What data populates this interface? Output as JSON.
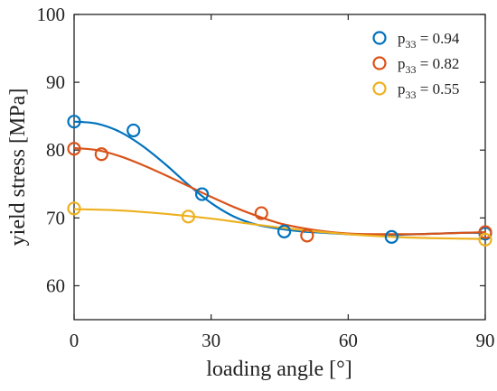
{
  "chart_data": {
    "type": "scatter",
    "xlabel": "loading angle [°]",
    "ylabel": "yield stress [MPa]",
    "xlim": [
      0,
      90
    ],
    "ylim": [
      55,
      100
    ],
    "xticks": [
      0,
      30,
      60,
      90
    ],
    "yticks": [
      60,
      70,
      80,
      90,
      100
    ],
    "grid": false,
    "legend_position": "top-right",
    "series": [
      {
        "name": "p33 = 0.94",
        "legend": {
          "base": "p",
          "sub": "33",
          "rest": " = 0.94"
        },
        "color": "#0072BD",
        "points": [
          [
            0,
            84.2
          ],
          [
            13,
            82.9
          ],
          [
            28,
            73.5
          ],
          [
            46,
            68.0
          ],
          [
            69.5,
            67.2
          ],
          [
            90,
            67.7
          ]
        ],
        "fit": [
          [
            0,
            84.2
          ],
          [
            5,
            83.9
          ],
          [
            10,
            82.7
          ],
          [
            15,
            80.6
          ],
          [
            20,
            77.9
          ],
          [
            25,
            74.9
          ],
          [
            30,
            72.2
          ],
          [
            35,
            70.2
          ],
          [
            40,
            69.0
          ],
          [
            45,
            68.4
          ],
          [
            50,
            68.0
          ],
          [
            55,
            67.8
          ],
          [
            60,
            67.6
          ],
          [
            65,
            67.5
          ],
          [
            70,
            67.5
          ],
          [
            75,
            67.6
          ],
          [
            80,
            67.7
          ],
          [
            85,
            67.8
          ],
          [
            90,
            67.8
          ]
        ]
      },
      {
        "name": "p33 = 0.82",
        "legend": {
          "base": "p",
          "sub": "33",
          "rest": " = 0.82"
        },
        "color": "#D95319",
        "points": [
          [
            0,
            80.2
          ],
          [
            6,
            79.4
          ],
          [
            41,
            70.7
          ],
          [
            51,
            67.4
          ],
          [
            90,
            67.9
          ]
        ],
        "fit": [
          [
            0,
            80.3
          ],
          [
            5,
            80.0
          ],
          [
            10,
            79.1
          ],
          [
            15,
            77.8
          ],
          [
            20,
            76.3
          ],
          [
            25,
            74.7
          ],
          [
            30,
            73.1
          ],
          [
            35,
            71.6
          ],
          [
            40,
            70.3
          ],
          [
            45,
            69.2
          ],
          [
            50,
            68.5
          ],
          [
            55,
            68.0
          ],
          [
            60,
            67.7
          ],
          [
            65,
            67.6
          ],
          [
            70,
            67.6
          ],
          [
            75,
            67.6
          ],
          [
            80,
            67.7
          ],
          [
            85,
            67.8
          ],
          [
            90,
            67.9
          ]
        ]
      },
      {
        "name": "p33 = 0.55",
        "legend": {
          "base": "p",
          "sub": "33",
          "rest": " = 0.55"
        },
        "color": "#EDB120",
        "points": [
          [
            0,
            71.4
          ],
          [
            25,
            70.2
          ],
          [
            90,
            66.8
          ]
        ],
        "fit": [
          [
            0,
            71.3
          ],
          [
            10,
            71.1
          ],
          [
            20,
            70.6
          ],
          [
            30,
            69.9
          ],
          [
            40,
            69.0
          ],
          [
            50,
            68.2
          ],
          [
            60,
            67.6
          ],
          [
            70,
            67.2
          ],
          [
            80,
            67.0
          ],
          [
            90,
            66.9
          ]
        ]
      }
    ]
  }
}
